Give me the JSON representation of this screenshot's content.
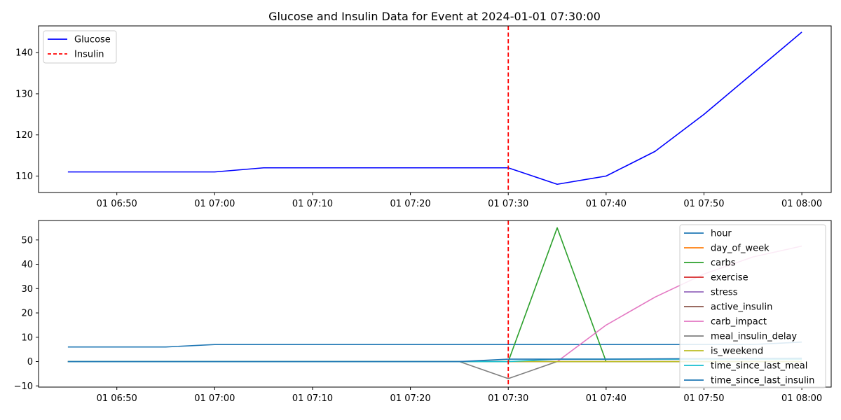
{
  "chart_data": [
    {
      "type": "line",
      "title": "Glucose and Insulin Data for Event at 2024-01-01 07:30:00",
      "xlabel": "",
      "ylabel": "",
      "x": [
        "06:45",
        "06:50",
        "06:55",
        "07:00",
        "07:05",
        "07:10",
        "07:15",
        "07:20",
        "07:25",
        "07:30",
        "07:35",
        "07:40",
        "07:45",
        "07:50",
        "07:55",
        "08:00"
      ],
      "xlim": [
        "06:42",
        "08:03"
      ],
      "xticks": [
        "06:50",
        "07:00",
        "07:10",
        "07:20",
        "07:30",
        "07:40",
        "07:50",
        "08:00"
      ],
      "xtick_labels": [
        "01 06:50",
        "01 07:00",
        "01 07:10",
        "01 07:20",
        "01 07:30",
        "01 07:40",
        "01 07:50",
        "01 08:00"
      ],
      "ylim": [
        106,
        146.5
      ],
      "yticks": [
        110,
        120,
        130,
        140
      ],
      "grid": false,
      "legend_position": "top-left",
      "series": [
        {
          "name": "Glucose",
          "color": "#0000ff",
          "style": "solid",
          "values": [
            111,
            111,
            111,
            111,
            112,
            112,
            112,
            112,
            112,
            112,
            108,
            110,
            116,
            125,
            135,
            145
          ]
        }
      ],
      "vlines": [
        {
          "name": "Insulin",
          "x": "07:30",
          "color": "#ff0000",
          "style": "dashed"
        }
      ]
    },
    {
      "type": "line",
      "title": "",
      "xlabel": "",
      "ylabel": "",
      "x": [
        "06:45",
        "06:50",
        "06:55",
        "07:00",
        "07:05",
        "07:10",
        "07:15",
        "07:20",
        "07:25",
        "07:30",
        "07:35",
        "07:40",
        "07:45",
        "07:50",
        "07:55",
        "08:00"
      ],
      "xlim": [
        "06:42",
        "08:03"
      ],
      "xticks": [
        "06:50",
        "07:00",
        "07:10",
        "07:20",
        "07:30",
        "07:40",
        "07:50",
        "08:00"
      ],
      "xtick_labels": [
        "01 06:50",
        "01 07:00",
        "01 07:10",
        "01 07:20",
        "01 07:30",
        "01 07:40",
        "01 07:50",
        "01 08:00"
      ],
      "ylim": [
        -10.5,
        58
      ],
      "yticks": [
        -10,
        0,
        10,
        20,
        30,
        40,
        50
      ],
      "grid": false,
      "legend_position": "top-right",
      "vlines": [
        {
          "name": "",
          "x": "07:30",
          "color": "#ff0000",
          "style": "dashed"
        }
      ],
      "series": [
        {
          "name": "hour",
          "color": "#1f77b4",
          "values": [
            6,
            6,
            6,
            7,
            7,
            7,
            7,
            7,
            7,
            7,
            7,
            7,
            7,
            7,
            7,
            8
          ]
        },
        {
          "name": "day_of_week",
          "color": "#ff7f0e",
          "values": [
            0,
            0,
            0,
            0,
            0,
            0,
            0,
            0,
            0,
            0,
            0,
            0,
            0,
            0,
            0,
            0
          ]
        },
        {
          "name": "carbs",
          "color": "#2ca02c",
          "values": [
            0,
            0,
            0,
            0,
            0,
            0,
            0,
            0,
            0,
            0,
            55,
            0,
            0,
            0,
            0,
            0
          ]
        },
        {
          "name": "exercise",
          "color": "#d62728",
          "values": [
            0,
            0,
            0,
            0,
            0,
            0,
            0,
            0,
            0,
            0,
            0,
            0,
            0,
            0,
            0,
            0
          ]
        },
        {
          "name": "stress",
          "color": "#9467bd",
          "values": [
            0,
            0,
            0,
            0,
            0,
            0,
            0,
            0,
            0,
            0,
            0,
            0,
            0,
            0,
            0,
            0
          ]
        },
        {
          "name": "active_insulin",
          "color": "#8c564b",
          "values": [
            0,
            0,
            0,
            0,
            0,
            0,
            0,
            0,
            0,
            0,
            0,
            0,
            0,
            0,
            0,
            0
          ]
        },
        {
          "name": "carb_impact",
          "color": "#e377c2",
          "values": [
            0,
            0,
            0,
            0,
            0,
            0,
            0,
            0,
            0,
            0,
            0,
            15,
            26.5,
            36,
            43,
            47.5
          ]
        },
        {
          "name": "meal_insulin_delay",
          "color": "#7f7f7f",
          "values": [
            0,
            0,
            0,
            0,
            0,
            0,
            0,
            0,
            0,
            -7,
            0,
            0,
            0,
            0,
            0,
            0
          ]
        },
        {
          "name": "is_weekend",
          "color": "#bcbd22",
          "values": [
            0,
            0,
            0,
            0,
            0,
            0,
            0,
            0,
            0,
            0,
            0,
            0,
            0,
            0,
            0,
            0
          ]
        },
        {
          "name": "time_since_last_meal",
          "color": "#17becf",
          "values": [
            0,
            0,
            0,
            0,
            0,
            0,
            0,
            0,
            0,
            0,
            1,
            1,
            1,
            1,
            1,
            1
          ]
        },
        {
          "name": "time_since_last_insulin",
          "color": "#1f77b4",
          "values": [
            0,
            0,
            0,
            0,
            0,
            0,
            0,
            0,
            0,
            1,
            1,
            1,
            1.1,
            1.2,
            1.3,
            1.4
          ]
        }
      ]
    }
  ]
}
